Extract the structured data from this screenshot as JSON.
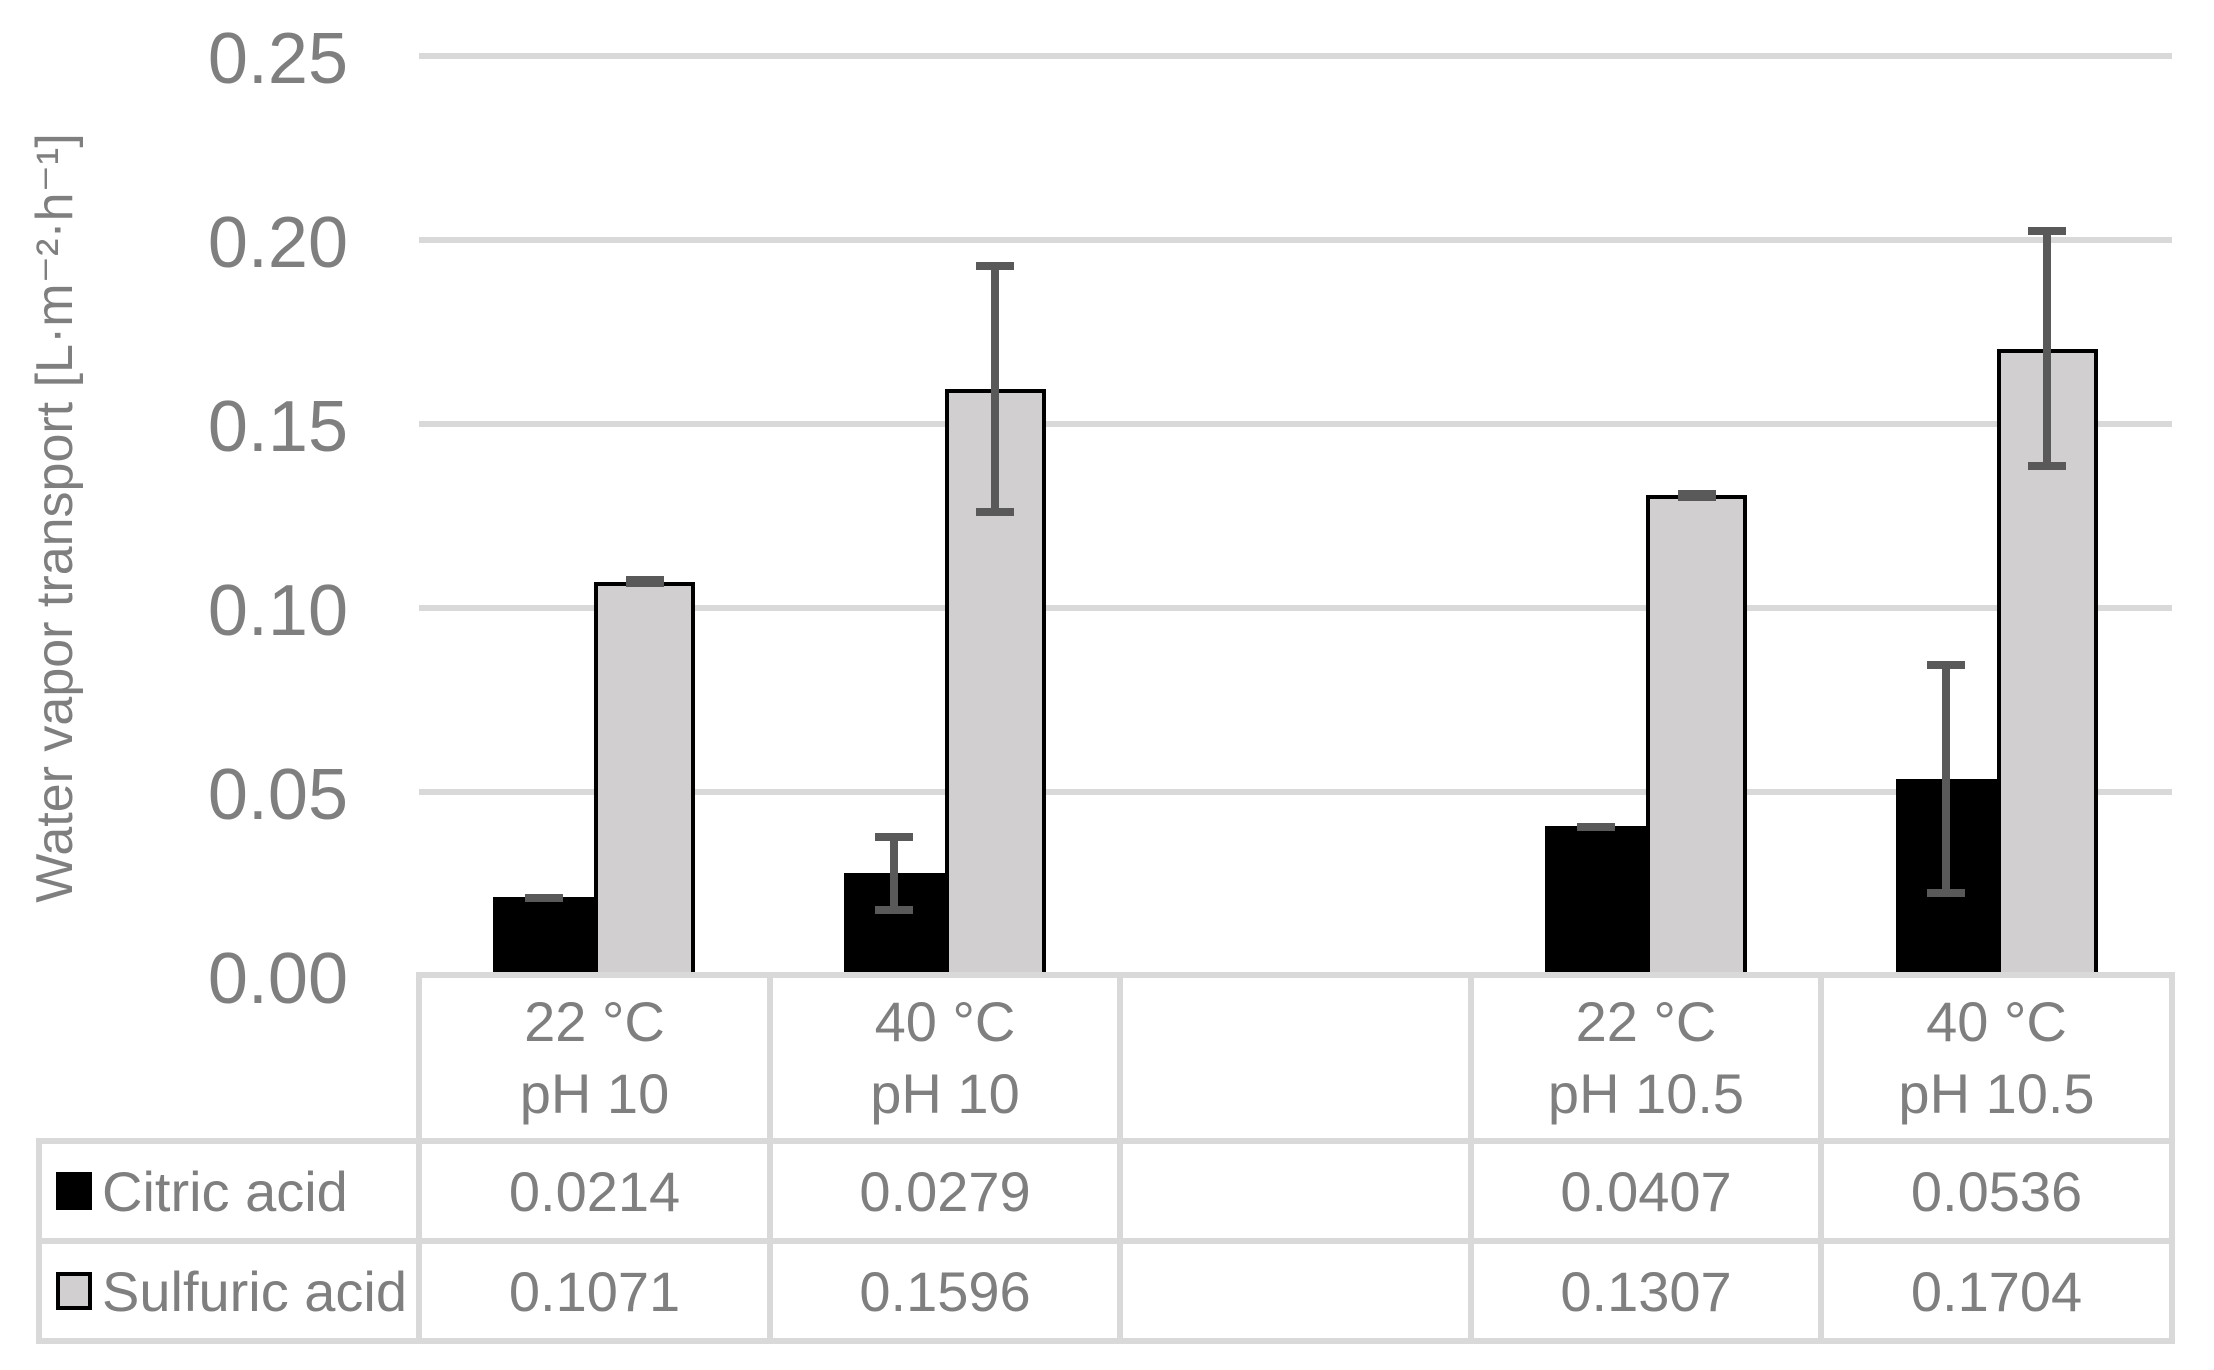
{
  "chart_data": {
    "type": "bar",
    "title": "",
    "ylabel": "Water vapor transport [L·m⁻²·h⁻¹]",
    "ylim": [
      0,
      0.25
    ],
    "ytick_labels": [
      "0.25",
      "0.20",
      "0.15",
      "0.10",
      "0.05",
      "0.00"
    ],
    "grid": true,
    "legend_position": "left column of data table below chart",
    "categories": [
      "22 °C pH 10",
      "40 °C pH 10",
      "",
      "22 °C pH 10.5",
      "40 °C pH 10.5"
    ],
    "header_lines": [
      [
        "22 °C",
        "pH 10"
      ],
      [
        "40 °C",
        "pH 10"
      ],
      [
        "",
        ""
      ],
      [
        "22 °C",
        "pH 10.5"
      ],
      [
        "40 °C",
        "pH 10.5"
      ]
    ],
    "series": [
      {
        "name": "Citric acid",
        "color": "#000000",
        "values": [
          0.0214,
          0.0279,
          null,
          0.0407,
          0.0536
        ],
        "errors_plus_minus": [
          0.001,
          0.011,
          null,
          0.001,
          0.032
        ],
        "table_labels": [
          "0.0214",
          "0.0279",
          "",
          "0.0407",
          "0.0536"
        ]
      },
      {
        "name": "Sulfuric acid",
        "color": "#d1cfcf",
        "border_color": "#000000",
        "values": [
          0.1071,
          0.1596,
          null,
          0.1307,
          0.1704
        ],
        "errors_plus_minus": [
          0.0015,
          0.0345,
          null,
          0.0015,
          0.033
        ],
        "table_labels": [
          "0.1071",
          "0.1596",
          "",
          "0.1307",
          "0.1704"
        ]
      }
    ],
    "style": {
      "text_color": "#7f7f7f",
      "gridline_color": "#d9d9d9",
      "table_border_color": "#d9d9d9",
      "error_bar_color": "#595959",
      "background": "#ffffff"
    }
  }
}
